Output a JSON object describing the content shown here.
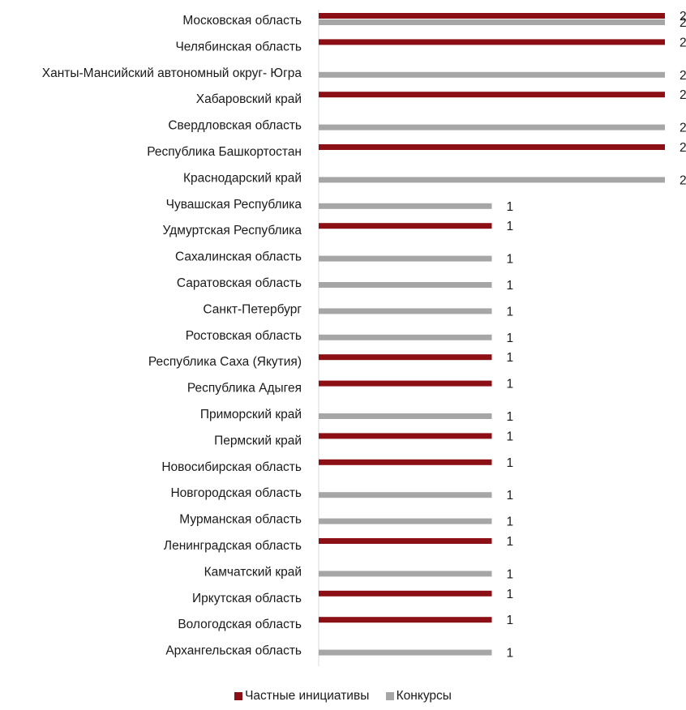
{
  "chart_data": {
    "type": "bar",
    "orientation": "horizontal",
    "grid": false,
    "legend_position": "bottom",
    "xlim": [
      0,
      2
    ],
    "categories": [
      "Московская область",
      "Челябинская область",
      "Ханты-Мансийский автономный округ- Югра",
      "Хабаровский край",
      "Свердловская область",
      "Республика Башкортостан",
      "Краснодарский край",
      "Чувашская Республика",
      "Удмуртская Республика",
      "Сахалинская область",
      "Саратовская область",
      "Санкт-Петербург",
      "Ростовская область",
      "Республика Саха (Якутия)",
      "Республика Адыгея",
      "Приморский край",
      "Пермский край",
      "Новосибирская область",
      "Новгородская область",
      "Мурманская область",
      "Ленинградская область",
      "Камчатский край",
      "Иркутская область",
      "Вологодская область",
      "Архангельская область"
    ],
    "series": [
      {
        "name": "Частные инициативы",
        "color": "#8b0f14",
        "values": [
          2,
          2,
          null,
          2,
          null,
          2,
          null,
          null,
          1,
          null,
          null,
          null,
          null,
          1,
          1,
          null,
          1,
          1,
          null,
          null,
          1,
          null,
          1,
          1,
          null
        ]
      },
      {
        "name": "Конкурсы",
        "color": "#a6a6a6",
        "values": [
          2,
          null,
          2,
          null,
          2,
          null,
          2,
          1,
          null,
          1,
          1,
          1,
          1,
          null,
          null,
          1,
          null,
          null,
          1,
          1,
          null,
          1,
          null,
          null,
          1
        ]
      }
    ]
  }
}
